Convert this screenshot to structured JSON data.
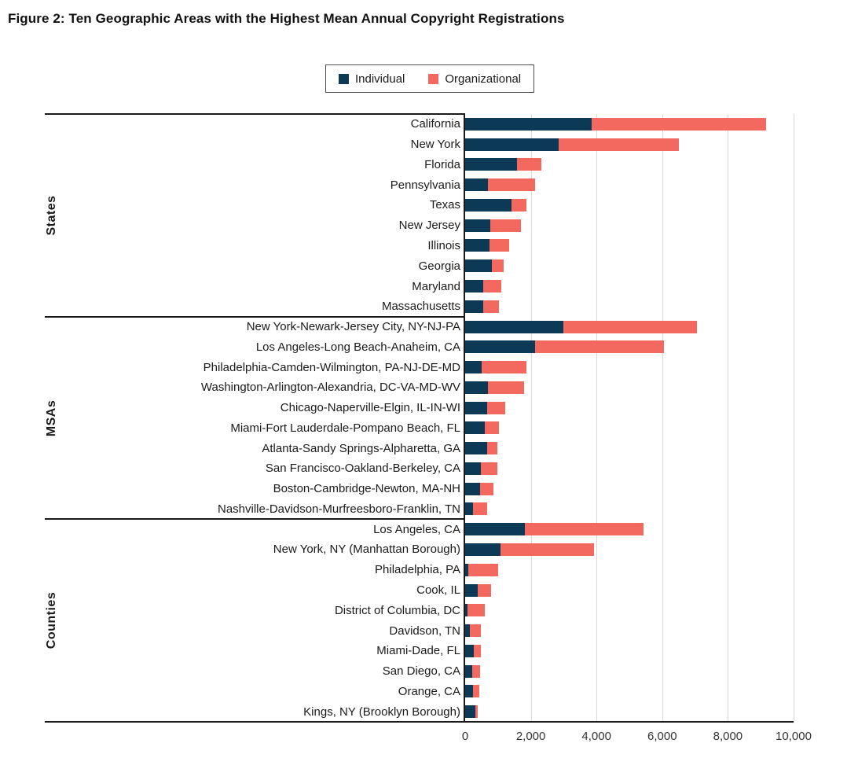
{
  "figure": {
    "title": "Figure 2: Ten Geographic Areas with the Highest Mean Annual Copyright Registrations"
  },
  "legend": {
    "items": [
      {
        "label": "Individual",
        "color": "#0c3a56"
      },
      {
        "label": "Organizational",
        "color": "#f3695f"
      }
    ]
  },
  "colors": {
    "individual": "#0c3a56",
    "organizational": "#f3695f",
    "gridline": "#d9d9d9",
    "axis": "#1a1a1a"
  },
  "chart_data": {
    "type": "bar",
    "orientation": "horizontal",
    "stacked": true,
    "title": "Figure 2: Ten Geographic Areas with the Highest Mean Annual Copyright Registrations",
    "xlabel": "",
    "ylabel": "",
    "xlim": [
      0,
      10000
    ],
    "x_tick_labels": [
      "0",
      "2,000",
      "4,000",
      "6,000",
      "8,000",
      "10,000"
    ],
    "x_tick_values": [
      0,
      2000,
      4000,
      6000,
      8000,
      10000
    ],
    "grid": true,
    "legend_position": "top",
    "series_names": [
      "Individual",
      "Organizational"
    ],
    "groups": [
      {
        "name": "States",
        "rows": [
          {
            "label": "California",
            "individual": 3850,
            "organizational": 5320
          },
          {
            "label": "New York",
            "individual": 2850,
            "organizational": 3650
          },
          {
            "label": "Florida",
            "individual": 1590,
            "organizational": 740
          },
          {
            "label": "Pennsylvania",
            "individual": 690,
            "organizational": 1430
          },
          {
            "label": "Texas",
            "individual": 1400,
            "organizational": 460
          },
          {
            "label": "New Jersey",
            "individual": 760,
            "organizational": 930
          },
          {
            "label": "Illinois",
            "individual": 730,
            "organizational": 620
          },
          {
            "label": "Georgia",
            "individual": 810,
            "organizational": 360
          },
          {
            "label": "Maryland",
            "individual": 560,
            "organizational": 540
          },
          {
            "label": "Massachusetts",
            "individual": 550,
            "organizational": 480
          }
        ]
      },
      {
        "name": "MSAs",
        "rows": [
          {
            "label": "New York-Newark-Jersey City, NY-NJ-PA",
            "individual": 3000,
            "organizational": 4060
          },
          {
            "label": "Los Angeles-Long Beach-Anaheim, CA",
            "individual": 2130,
            "organizational": 3920
          },
          {
            "label": "Philadelphia-Camden-Wilmington, PA-NJ-DE-MD",
            "individual": 500,
            "organizational": 1360
          },
          {
            "label": "Washington-Arlington-Alexandria, DC-VA-MD-WV",
            "individual": 700,
            "organizational": 1090
          },
          {
            "label": "Chicago-Naperville-Elgin, IL-IN-WI",
            "individual": 660,
            "organizational": 570
          },
          {
            "label": "Miami-Fort Lauderdale-Pompano Beach, FL",
            "individual": 600,
            "organizational": 430
          },
          {
            "label": "Atlanta-Sandy Springs-Alpharetta, GA",
            "individual": 660,
            "organizational": 310
          },
          {
            "label": "San Francisco-Oakland-Berkeley, CA",
            "individual": 480,
            "organizational": 490
          },
          {
            "label": "Boston-Cambridge-Newton, MA-NH",
            "individual": 460,
            "organizational": 410
          },
          {
            "label": "Nashville-Davidson-Murfreesboro-Franklin, TN",
            "individual": 250,
            "organizational": 410
          }
        ]
      },
      {
        "name": "Counties",
        "rows": [
          {
            "label": "Los Angeles, CA",
            "individual": 1830,
            "organizational": 3600
          },
          {
            "label": "New York, NY (Manhattan Borough)",
            "individual": 1080,
            "organizational": 2850
          },
          {
            "label": "Philadelphia, PA",
            "individual": 100,
            "organizational": 900
          },
          {
            "label": "Cook, IL",
            "individual": 380,
            "organizational": 410
          },
          {
            "label": "District of Columbia, DC",
            "individual": 80,
            "organizational": 520
          },
          {
            "label": "Davidson, TN",
            "individual": 140,
            "organizational": 340
          },
          {
            "label": "Miami-Dade, FL",
            "individual": 260,
            "organizational": 215
          },
          {
            "label": "San Diego, CA",
            "individual": 220,
            "organizational": 240
          },
          {
            "label": "Orange, CA",
            "individual": 230,
            "organizational": 200
          },
          {
            "label": "Kings, NY (Brooklyn Borough)",
            "individual": 300,
            "organizational": 90
          }
        ]
      }
    ]
  }
}
